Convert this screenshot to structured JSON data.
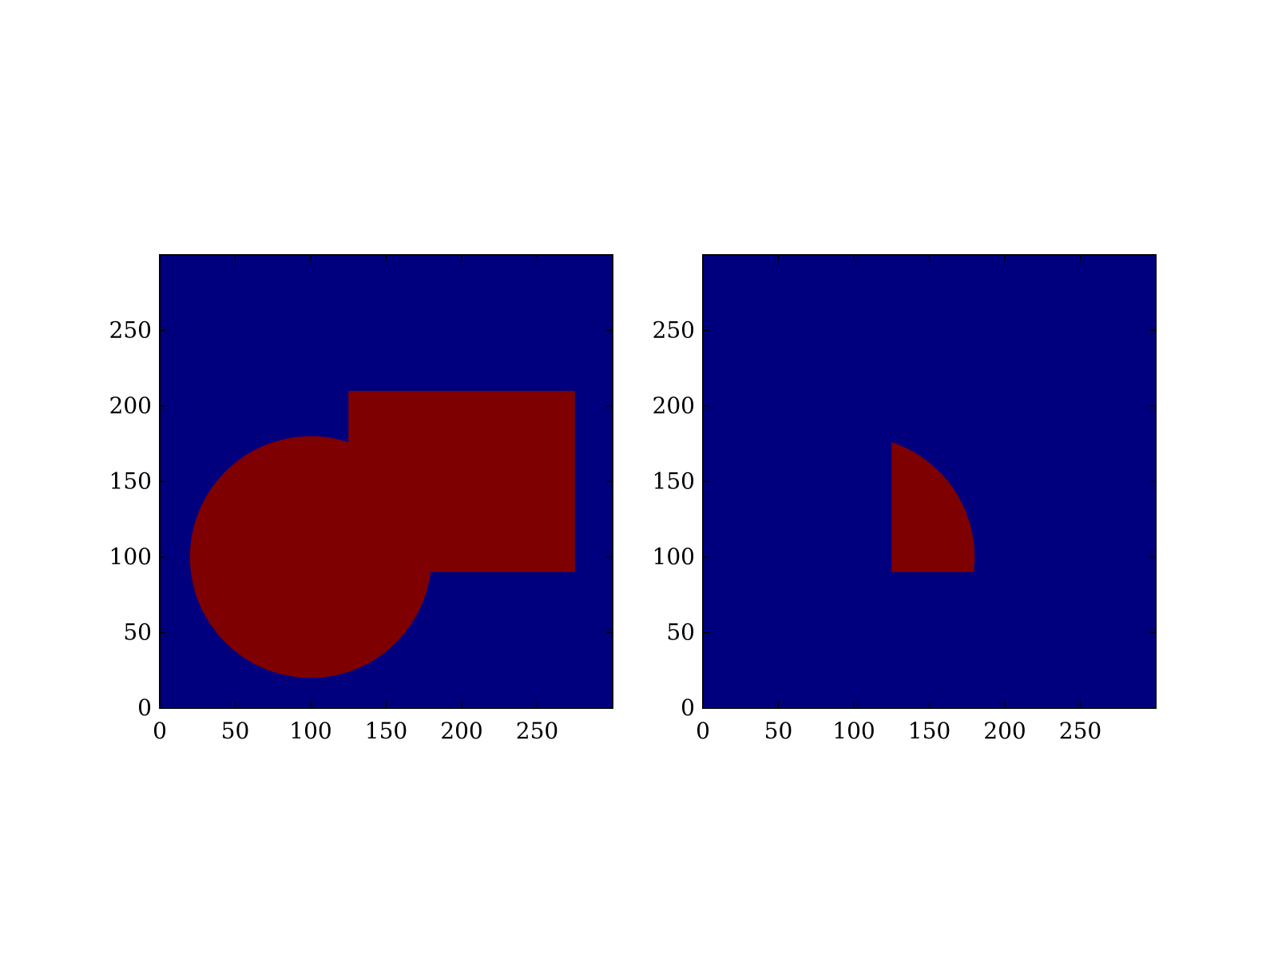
{
  "chart_data": [
    {
      "type": "heatmap",
      "title": "",
      "xlabel": "",
      "ylabel": "",
      "xlim": [
        0,
        300
      ],
      "ylim": [
        0,
        300
      ],
      "xticks": [
        0,
        50,
        100,
        150,
        200,
        250
      ],
      "yticks": [
        0,
        50,
        100,
        150,
        200,
        250
      ],
      "xtick_labels": [
        "0",
        "50",
        "100",
        "150",
        "200",
        "250"
      ],
      "ytick_labels": [
        "0",
        "50",
        "100",
        "150",
        "200",
        "250"
      ],
      "grid": false,
      "background_value": 0,
      "shapes": [
        {
          "kind": "circle",
          "value": 1,
          "center": [
            100,
            100
          ],
          "radius": 80
        },
        {
          "kind": "rectangle",
          "value": 1,
          "x_range": [
            125,
            275
          ],
          "y_range": [
            90,
            210
          ]
        }
      ]
    },
    {
      "type": "heatmap",
      "title": "",
      "xlabel": "",
      "ylabel": "",
      "xlim": [
        0,
        300
      ],
      "ylim": [
        0,
        300
      ],
      "xticks": [
        0,
        50,
        100,
        150,
        200,
        250
      ],
      "yticks": [
        0,
        50,
        100,
        150,
        200,
        250
      ],
      "xtick_labels": [
        "0",
        "50",
        "100",
        "150",
        "200",
        "250"
      ],
      "ytick_labels": [
        "0",
        "50",
        "100",
        "150",
        "200",
        "250"
      ],
      "grid": false,
      "background_value": 0,
      "shapes": [
        {
          "kind": "circle-rectangle-intersection",
          "value": 1,
          "center": [
            100,
            100
          ],
          "radius": 80,
          "x_range": [
            125,
            275
          ],
          "y_range": [
            90,
            210
          ]
        }
      ]
    }
  ],
  "colors": {
    "low": "#00007f",
    "high": "#7f0000",
    "axis": "#000000",
    "background": "#ffffff"
  }
}
